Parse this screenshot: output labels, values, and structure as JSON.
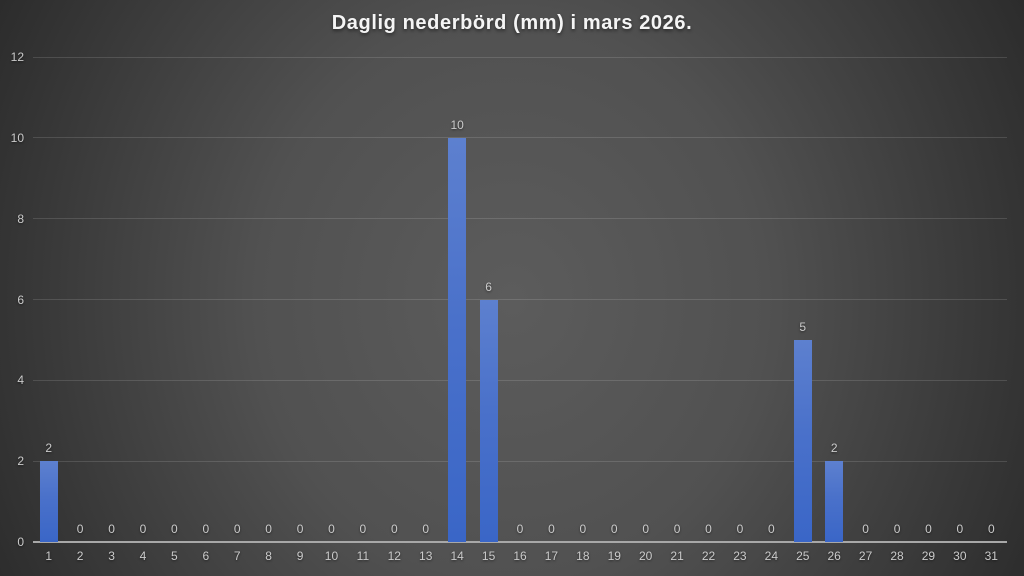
{
  "chart_data": {
    "type": "bar",
    "title": "Daglig nederbörd (mm) i mars 2026.",
    "xlabel": "",
    "ylabel": "",
    "categories": [
      1,
      2,
      3,
      4,
      5,
      6,
      7,
      8,
      9,
      10,
      11,
      12,
      13,
      14,
      15,
      16,
      17,
      18,
      19,
      20,
      21,
      22,
      23,
      24,
      25,
      26,
      27,
      28,
      29,
      30,
      31
    ],
    "values": [
      2,
      0,
      0,
      0,
      0,
      0,
      0,
      0,
      0,
      0,
      0,
      0,
      0,
      10,
      6,
      0,
      0,
      0,
      0,
      0,
      0,
      0,
      0,
      0,
      5,
      2,
      0,
      0,
      0,
      0,
      0
    ],
    "y_ticks": [
      0,
      2,
      4,
      6,
      8,
      10,
      12
    ],
    "ylim": [
      0,
      12
    ],
    "grid": true,
    "data_labels": true,
    "legend": "none",
    "colors": {
      "bar_top": "#5d80cf",
      "bar_bottom": "#3a66c7",
      "axis_line": "#a8a8a8",
      "tick_label": "#cbcbcb",
      "title": "#f5f5f5",
      "background_center": "#5c5c5c",
      "background_edge": "#242424"
    }
  }
}
